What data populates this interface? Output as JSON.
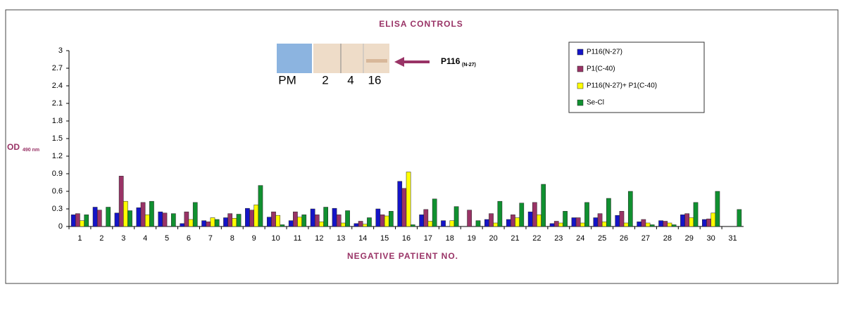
{
  "chart_data": {
    "type": "bar",
    "title": "ELISA CONTROLS",
    "x_label": "NEGATIVE PATIENT NO.",
    "y_label": "OD",
    "y_label_sub": "490 nm",
    "categories": [
      "1",
      "2",
      "3",
      "4",
      "5",
      "6",
      "7",
      "8",
      "9",
      "10",
      "11",
      "12",
      "13",
      "14",
      "15",
      "16",
      "17",
      "18",
      "19",
      "20",
      "21",
      "22",
      "23",
      "24",
      "25",
      "26",
      "27",
      "28",
      "29",
      "30",
      "31"
    ],
    "series": [
      {
        "name": "P116(N-27)",
        "color": "#1414c8",
        "values": [
          0.2,
          0.33,
          0.23,
          0.32,
          0.25,
          0.05,
          0.1,
          0.15,
          0.31,
          0.16,
          0.1,
          0.3,
          0.31,
          0.05,
          0.3,
          0.77,
          0.2,
          0.1,
          0,
          0.12,
          0.12,
          0.25,
          0.05,
          0.15,
          0.15,
          0.19,
          0.08,
          0.1,
          0.2,
          0.12,
          0
        ]
      },
      {
        "name": "P1(C-40)",
        "color": "#993366",
        "values": [
          0.22,
          0.28,
          0.86,
          0.41,
          0.23,
          0.25,
          0.08,
          0.22,
          0.28,
          0.25,
          0.25,
          0.2,
          0.2,
          0.09,
          0.2,
          0.65,
          0.29,
          0,
          0.28,
          0.22,
          0.2,
          0.41,
          0.09,
          0.15,
          0.22,
          0.26,
          0.12,
          0.09,
          0.22,
          0.13,
          0
        ]
      },
      {
        "name": "P116(N-27)+ P1(C-40)",
        "color": "#ffff00",
        "values": [
          0.1,
          0,
          0.43,
          0.2,
          0,
          0.12,
          0.15,
          0.14,
          0.37,
          0.19,
          0.16,
          0.08,
          0.06,
          0.04,
          0.18,
          0.93,
          0.09,
          0.1,
          0,
          0.06,
          0.15,
          0.2,
          0.06,
          0.06,
          0.08,
          0.06,
          0.06,
          0.06,
          0.15,
          0.23,
          0
        ]
      },
      {
        "name": "Se-Cl",
        "color": "#109030",
        "values": [
          0.2,
          0.33,
          0.27,
          0.43,
          0.22,
          0.41,
          0.12,
          0.21,
          0.7,
          0.03,
          0.2,
          0.33,
          0.27,
          0.15,
          0.26,
          0.03,
          0.47,
          0.34,
          0.1,
          0.43,
          0.4,
          0.72,
          0.26,
          0.41,
          0.48,
          0.6,
          0.03,
          0.03,
          0.41,
          0.6,
          0.29
        ]
      }
    ],
    "ylim": [
      0,
      3
    ],
    "yticks": [
      0,
      0.3,
      0.6,
      0.9,
      1.2,
      1.5,
      1.8,
      2.1,
      2.4,
      2.7,
      3
    ],
    "inset": {
      "lanes": [
        "PM",
        "2",
        "4",
        "16"
      ],
      "label": "P116",
      "label_sub": "(N-27)"
    }
  }
}
